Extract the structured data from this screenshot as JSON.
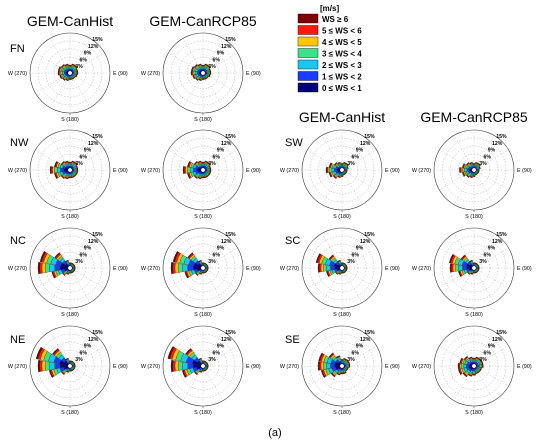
{
  "chart_data": {
    "type": "wind-rose",
    "figure_label": "(a)",
    "column_headers": {
      "left_hist": "GEM-CanHist",
      "left_rcp": "GEM-CanRCP85",
      "right_hist": "GEM-CanHist",
      "right_rcp": "GEM-CanRCP85"
    },
    "legend": {
      "unit": "[m/s]",
      "placement": "top-center",
      "bins": [
        {
          "label": "WS ≥ 6",
          "color": "#7f0000"
        },
        {
          "label": "5 ≤ WS < 6",
          "color": "#ff1a00"
        },
        {
          "label": "4 ≤ WS < 5",
          "color": "#ffc800"
        },
        {
          "label": "3 ≤ WS < 4",
          "color": "#3ee08a"
        },
        {
          "label": "2 ≤ WS < 3",
          "color": "#18c8f0"
        },
        {
          "label": "1 ≤ WS < 2",
          "color": "#1a3cff"
        },
        {
          "label": "0 ≤ WS < 1",
          "color": "#00007a"
        }
      ]
    },
    "rings_pct": [
      "3%",
      "6%",
      "9%",
      "12%",
      "15%"
    ],
    "ring_max_pct": 15,
    "direction_labels": {
      "west": "W (270)",
      "east": "E (90)",
      "south": "S (180)"
    },
    "sector_deg": [
      0,
      22.5,
      45,
      67.5,
      90,
      112.5,
      135,
      157.5,
      180,
      202.5,
      225,
      247.5,
      270,
      292.5,
      315,
      337.5
    ],
    "region_labels": [
      "FN",
      "NW",
      "SW",
      "NC",
      "SC",
      "NE",
      "SE"
    ],
    "panels": [
      {
        "region": "FN",
        "scenario": "GEM-CanHist",
        "sectors": [
          3,
          3.5,
          3.5,
          3,
          3,
          2.8,
          2.5,
          2.5,
          2.5,
          3,
          3.5,
          4,
          4.5,
          4.5,
          4,
          3.5
        ]
      },
      {
        "region": "FN",
        "scenario": "GEM-CanRCP85",
        "sectors": [
          3,
          3.5,
          3.5,
          3,
          3,
          2.8,
          2.5,
          2.5,
          2.5,
          3,
          3.5,
          4,
          4.5,
          4.5,
          4,
          3.5
        ]
      },
      {
        "region": "NW",
        "scenario": "GEM-CanHist",
        "sectors": [
          3,
          3.5,
          3.5,
          3,
          3,
          3,
          3,
          3,
          3,
          3.5,
          4,
          6,
          7.5,
          6,
          4,
          3.5
        ]
      },
      {
        "region": "NW",
        "scenario": "GEM-CanRCP85",
        "sectors": [
          3,
          3.5,
          3.5,
          3,
          3,
          3,
          3,
          3,
          3,
          3.5,
          4,
          6,
          7.5,
          6,
          4,
          3.5
        ]
      },
      {
        "region": "SW",
        "scenario": "GEM-CanHist",
        "sectors": [
          2.5,
          3,
          3,
          2.5,
          2,
          2,
          2,
          2,
          2.5,
          3,
          4,
          5,
          6,
          5,
          3.5,
          3
        ]
      },
      {
        "region": "SW",
        "scenario": "GEM-CanRCP85",
        "sectors": [
          2.5,
          3,
          3,
          2.5,
          2,
          2,
          2,
          2,
          2.5,
          3,
          3.5,
          4.5,
          5.5,
          4.5,
          3.5,
          3
        ]
      },
      {
        "region": "NC",
        "scenario": "GEM-CanHist",
        "sectors": [
          2,
          2,
          2,
          2,
          2,
          2,
          2,
          2,
          2,
          2.5,
          3.5,
          7,
          12,
          11.5,
          7,
          3
        ]
      },
      {
        "region": "NC",
        "scenario": "GEM-CanRCP85",
        "sectors": [
          2,
          2,
          2,
          2,
          2,
          2,
          2,
          2,
          2,
          2.5,
          3.5,
          7,
          12,
          11.5,
          7,
          3
        ]
      },
      {
        "region": "SC",
        "scenario": "GEM-CanHist",
        "sectors": [
          2,
          2,
          2,
          2,
          2,
          2,
          2,
          2,
          2,
          2.5,
          3,
          6,
          9,
          10,
          6,
          3
        ]
      },
      {
        "region": "SC",
        "scenario": "GEM-CanRCP85",
        "sectors": [
          2,
          2,
          2,
          2,
          2,
          2,
          2,
          2,
          2,
          2.5,
          3,
          6,
          9,
          9.5,
          6,
          3
        ]
      },
      {
        "region": "NE",
        "scenario": "GEM-CanHist",
        "sectors": [
          2,
          2,
          2,
          2,
          2,
          2,
          2,
          2,
          2,
          2.5,
          4,
          8,
          12,
          13,
          8,
          3
        ]
      },
      {
        "region": "NE",
        "scenario": "GEM-CanRCP85",
        "sectors": [
          2,
          2,
          2,
          2,
          2,
          2,
          2,
          2,
          2,
          2.5,
          4,
          8,
          12,
          13.5,
          8,
          3
        ]
      },
      {
        "region": "SE",
        "scenario": "GEM-CanHist",
        "sectors": [
          2.5,
          3,
          3,
          3,
          3,
          2.5,
          2.5,
          3,
          3,
          3.5,
          5,
          8,
          9,
          9,
          6,
          4
        ]
      },
      {
        "region": "SE",
        "scenario": "GEM-CanRCP85",
        "sectors": [
          3,
          3.5,
          3.5,
          3.5,
          3.5,
          3,
          3,
          3,
          3.5,
          4,
          5,
          6,
          6,
          5.5,
          4.5,
          3.5
        ]
      }
    ],
    "speed_fraction_by_radius": [
      0.3,
      0.18,
      0.16,
      0.14,
      0.1,
      0.07,
      0.05
    ]
  }
}
